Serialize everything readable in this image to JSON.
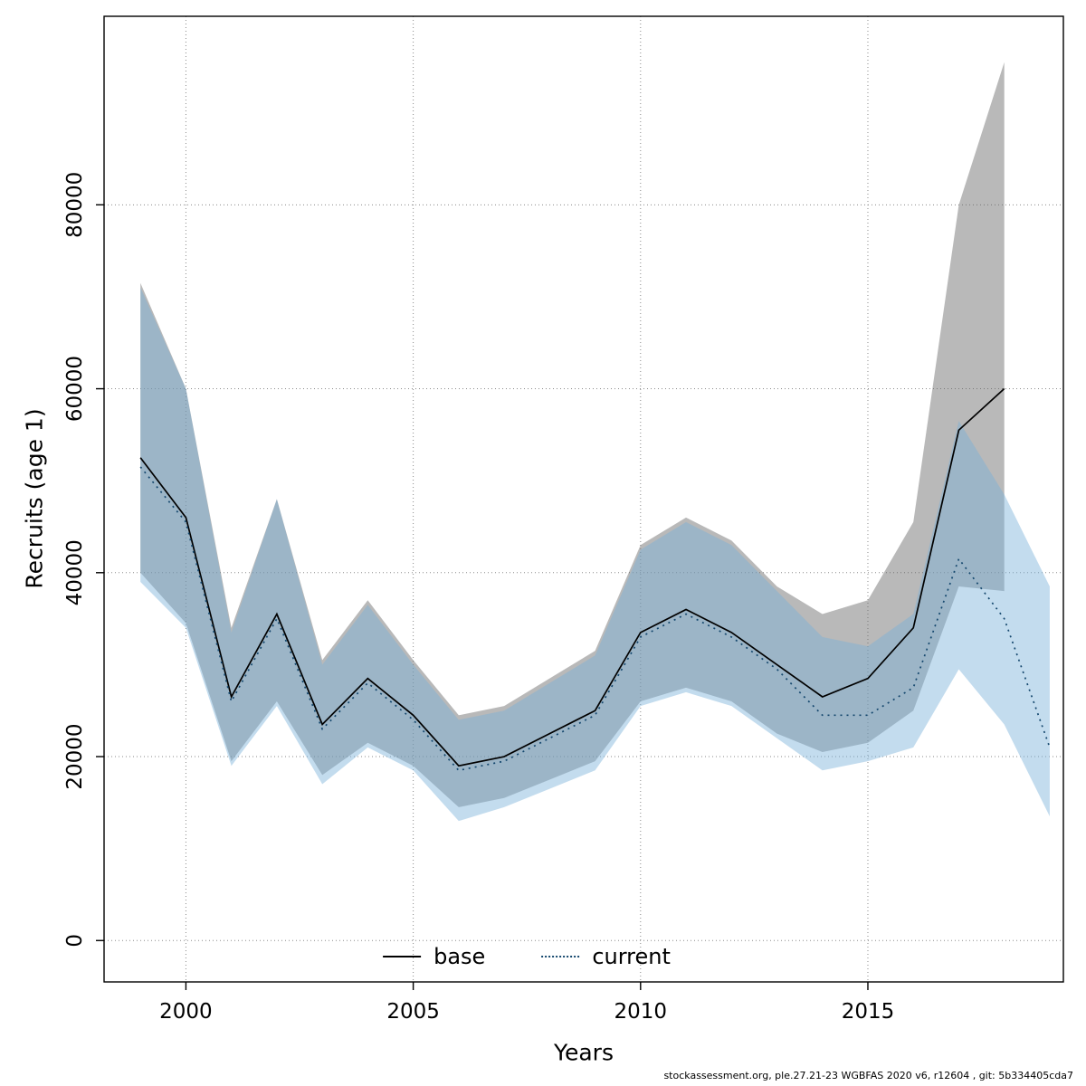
{
  "figure": {
    "xlabel": "Years",
    "ylabel": "Recruits (age 1)",
    "footer": "stockassessment.org, ple.27.21-23 WGBFAS 2020 v6, r12604 , git: 5b334405cda7",
    "legend": {
      "base_label": "base",
      "current_label": "current"
    }
  },
  "chart_data": {
    "type": "line",
    "title": "",
    "xlabel": "Years",
    "ylabel": "Recruits (age 1)",
    "xlim": [
      1998.2,
      2019.3
    ],
    "ylim": [
      -4500,
      100500
    ],
    "x_ticks": [
      2000,
      2005,
      2010,
      2015
    ],
    "y_ticks": [
      0,
      20000,
      40000,
      60000,
      80000
    ],
    "grid": true,
    "legend_position": "bottom-center-inside",
    "series": [
      {
        "name": "base",
        "line_style": "solid",
        "color": "#000000",
        "band_color": "rgba(100,100,100,0.45)",
        "x": [
          1999,
          2000,
          2001,
          2002,
          2003,
          2004,
          2005,
          2006,
          2007,
          2008,
          2009,
          2010,
          2011,
          2012,
          2013,
          2014,
          2015,
          2016,
          2017,
          2018
        ],
        "values": [
          52500,
          46000,
          26500,
          35500,
          23500,
          28500,
          24500,
          19000,
          20000,
          22500,
          25000,
          33500,
          36000,
          33500,
          30000,
          26500,
          28500,
          34000,
          55500,
          60000
        ],
        "ci_low": [
          40000,
          34500,
          19500,
          26000,
          18000,
          21500,
          19000,
          14500,
          15500,
          17500,
          19500,
          26000,
          27500,
          26000,
          22500,
          20500,
          21500,
          25000,
          38500,
          38000
        ],
        "ci_high": [
          71500,
          60000,
          34000,
          48000,
          30500,
          37000,
          30500,
          24500,
          25500,
          28500,
          31500,
          43000,
          46000,
          43500,
          38500,
          35500,
          37000,
          45500,
          80000,
          95500
        ]
      },
      {
        "name": "current",
        "line_style": "dotted",
        "color": "#15486e",
        "band_color": "rgba(122,177,217,0.45)",
        "x": [
          1999,
          2000,
          2001,
          2002,
          2003,
          2004,
          2005,
          2006,
          2007,
          2008,
          2009,
          2010,
          2011,
          2012,
          2013,
          2014,
          2015,
          2016,
          2017,
          2018,
          2019
        ],
        "values": [
          51500,
          45500,
          26000,
          35000,
          23000,
          28000,
          24000,
          18500,
          19500,
          22000,
          24500,
          33000,
          35500,
          33000,
          29500,
          24500,
          24500,
          27500,
          41500,
          35000,
          21000
        ],
        "ci_low": [
          39000,
          34000,
          19000,
          25500,
          17000,
          21000,
          18500,
          13000,
          14500,
          16500,
          18500,
          25500,
          27000,
          25500,
          22000,
          18500,
          19500,
          21000,
          29500,
          23500,
          13500
        ],
        "ci_high": [
          71000,
          60000,
          33500,
          48000,
          30000,
          36500,
          30000,
          24000,
          25000,
          28000,
          31000,
          42500,
          45500,
          43000,
          38000,
          33000,
          32000,
          35500,
          56500,
          48500,
          38500
        ]
      }
    ]
  }
}
